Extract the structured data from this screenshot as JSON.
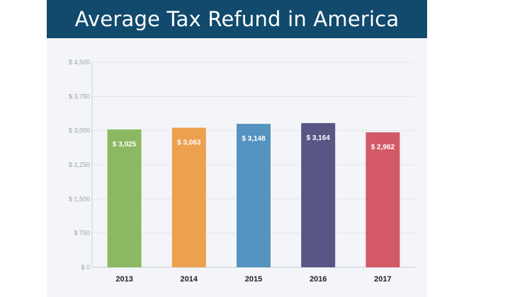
{
  "header": {
    "title": "Average Tax Refund in America"
  },
  "chart_data": {
    "type": "bar",
    "title": "Average Tax Refund in America",
    "xlabel": "",
    "ylabel": "",
    "categories": [
      "2013",
      "2014",
      "2015",
      "2016",
      "2017"
    ],
    "values": [
      3025,
      3063,
      3148,
      3164,
      2962
    ],
    "data_labels": [
      "$ 3,025",
      "$ 3,063",
      "$ 3,148",
      "$ 3,164",
      "$ 2,962"
    ],
    "colors": [
      "#8cb862",
      "#eda04e",
      "#5593c0",
      "#575684",
      "#d35967"
    ],
    "ylim": [
      0,
      4500
    ],
    "yticks": [
      0,
      750,
      1500,
      2250,
      3000,
      3750,
      4500
    ],
    "ytick_labels": [
      "$ 0",
      "$ 750",
      "$ 1,500",
      "$ 2,250",
      "$ 3,000",
      "$ 3,750",
      "$ 4,500"
    ],
    "grid": true,
    "legend": "none"
  }
}
